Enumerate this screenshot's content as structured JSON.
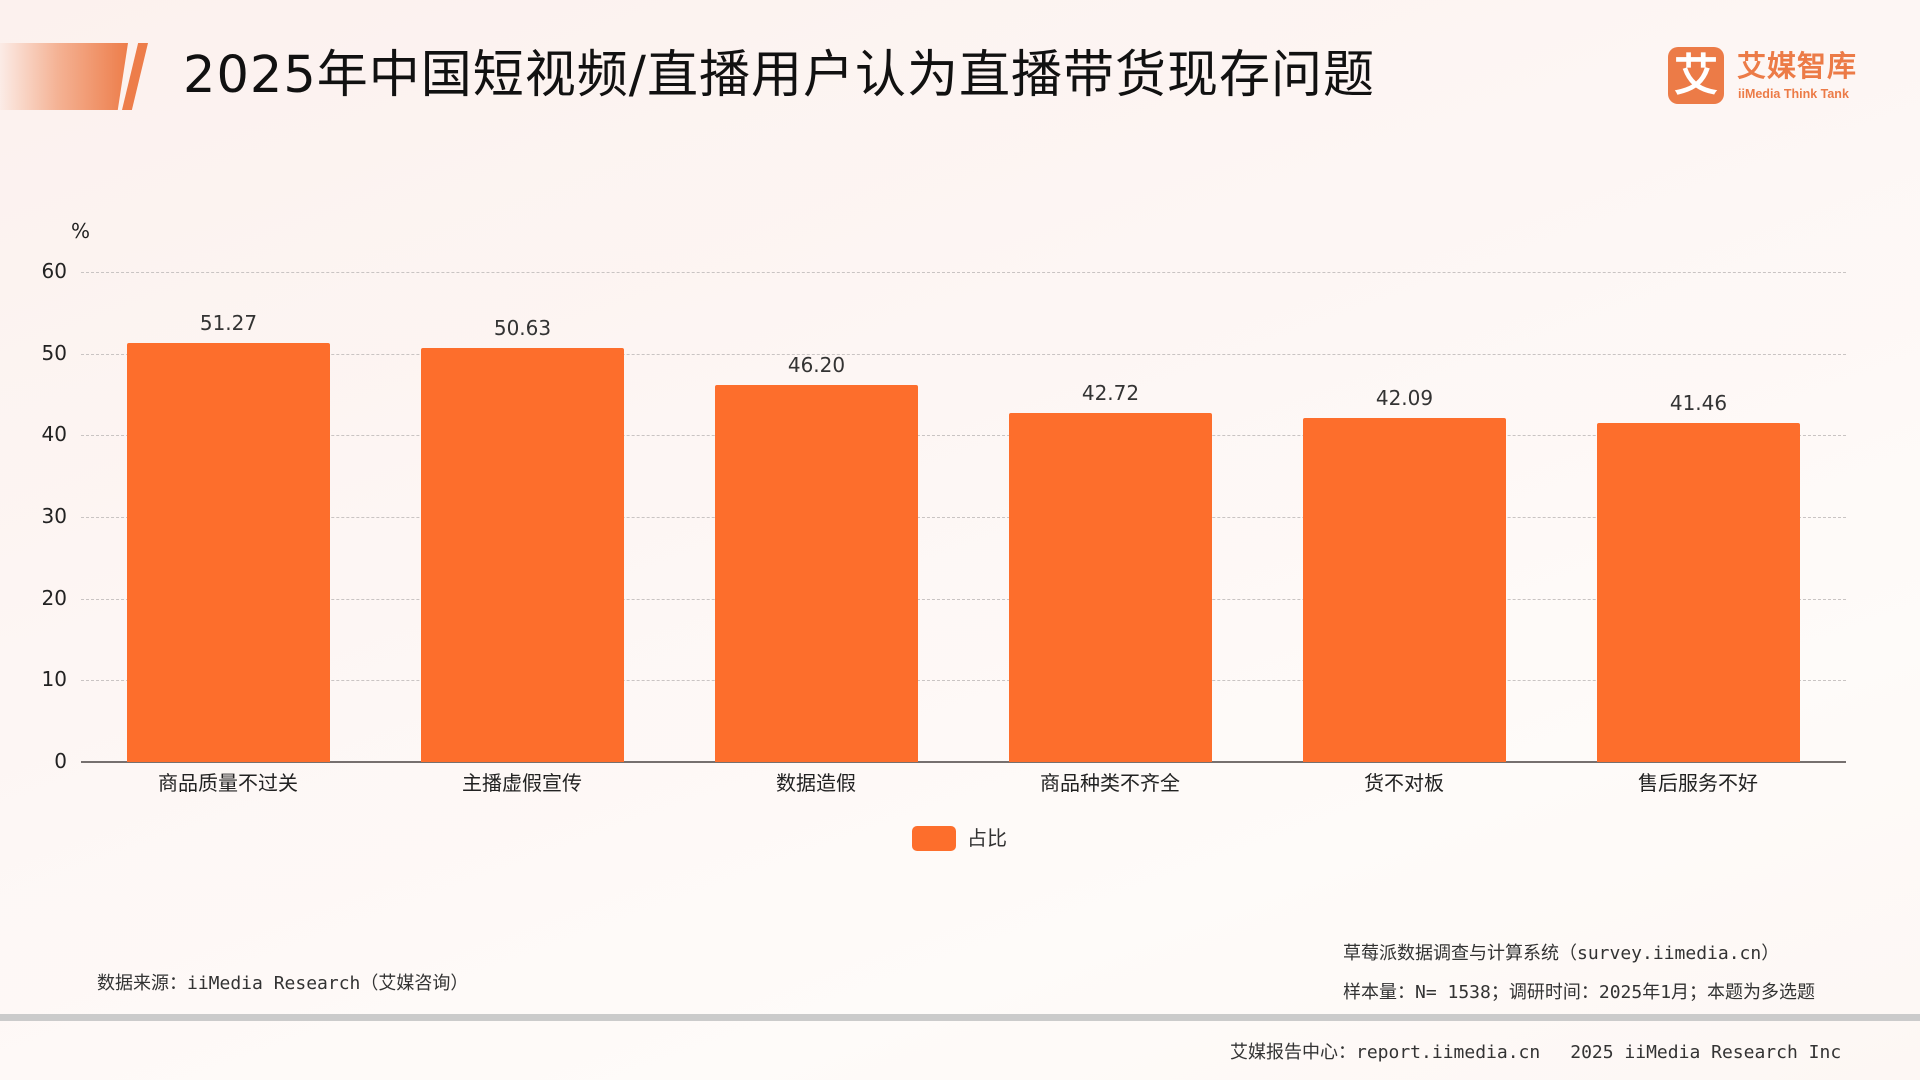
{
  "header": {
    "title": "2025年中国短视频/直播用户认为直播带货现存问题",
    "logo": {
      "icon_glyph": "艾",
      "name_cn": "艾媒智库",
      "name_en": "iiMedia Think Tank",
      "brand_color": "#ec7b47"
    }
  },
  "chart_data": {
    "type": "bar",
    "title": "2025年中国短视频/直播用户认为直播带货现存问题",
    "xlabel": "",
    "ylabel": "%",
    "ylim": [
      0,
      60
    ],
    "yticks": [
      0,
      10,
      20,
      30,
      40,
      50,
      60
    ],
    "grid": true,
    "legend_position": "bottom",
    "bar_color": "#fd6e2c",
    "categories": [
      "商品质量不过关",
      "主播虚假宣传",
      "数据造假",
      "商品种类不齐全",
      "货不对板",
      "售后服务不好"
    ],
    "series": [
      {
        "name": "占比",
        "values": [
          51.27,
          50.63,
          46.2,
          42.72,
          42.09,
          41.46
        ]
      }
    ],
    "value_labels": [
      "51.27",
      "50.63",
      "46.20",
      "42.72",
      "42.09",
      "41.46"
    ]
  },
  "axis": {
    "unit": "%",
    "ticks": [
      "0",
      "10",
      "20",
      "30",
      "40",
      "50",
      "60"
    ]
  },
  "legend": {
    "label": "占比"
  },
  "notes": {
    "source": "数据来源：iiMedia Research（艾媒咨询）",
    "system": "草莓派数据调查与计算系统（survey.iimedia.cn）",
    "sample": "样本量：N= 1538；调研时间：2025年1月；本题为多选题"
  },
  "footer": {
    "report_center": "艾媒报告中心：report.iimedia.cn",
    "copyright": "2025 iiMedia Research Inc"
  }
}
